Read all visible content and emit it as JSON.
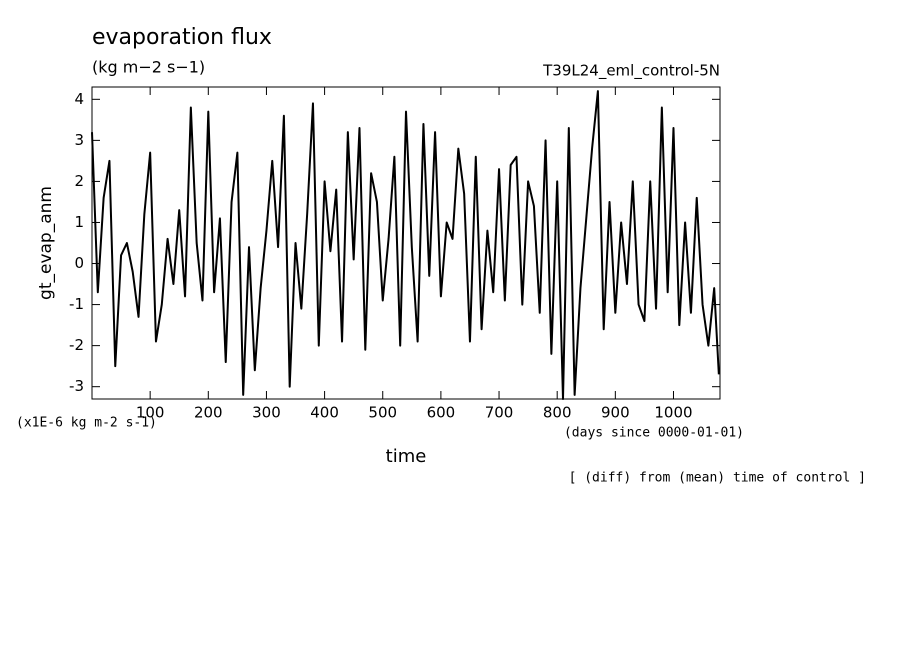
{
  "chart_data": {
    "type": "line",
    "title": "evaporation flux",
    "subtitle": "(kg m−2 s−1)",
    "run_label": "T39L24_eml_control-5N",
    "y_label": "gt_evap_anm",
    "y_unit_label": "(x1E-6 kg m-2 s-1)",
    "x_label": "time",
    "x_unit_label": "(days since 0000-01-01)",
    "note": "[ (diff) from (mean) time of control ]",
    "color": "#000000",
    "xlim": [
      0,
      1080
    ],
    "ylim": [
      -3.3,
      4.3
    ],
    "xticks": [
      100,
      200,
      300,
      400,
      500,
      600,
      700,
      800,
      900,
      1000
    ],
    "yticks": [
      -3,
      -2,
      -1,
      0,
      1,
      2,
      3,
      4
    ],
    "x": [
      0,
      10,
      20,
      30,
      40,
      50,
      60,
      70,
      80,
      90,
      100,
      110,
      120,
      130,
      140,
      150,
      160,
      170,
      180,
      190,
      200,
      210,
      220,
      230,
      240,
      250,
      260,
      270,
      280,
      290,
      300,
      310,
      320,
      330,
      340,
      350,
      360,
      370,
      380,
      390,
      400,
      410,
      420,
      430,
      440,
      450,
      460,
      470,
      480,
      490,
      500,
      510,
      520,
      530,
      540,
      550,
      560,
      570,
      580,
      590,
      600,
      610,
      620,
      630,
      640,
      650,
      660,
      670,
      680,
      690,
      700,
      710,
      720,
      730,
      740,
      750,
      760,
      770,
      780,
      790,
      800,
      810,
      820,
      830,
      840,
      850,
      860,
      870,
      880,
      890,
      900,
      910,
      920,
      930,
      940,
      950,
      960,
      970,
      980,
      990,
      1000,
      1010,
      1020,
      1030,
      1040,
      1050,
      1060,
      1070,
      1078
    ],
    "values": [
      3.2,
      -0.7,
      1.6,
      2.5,
      -2.5,
      0.2,
      0.5,
      -0.2,
      -1.3,
      1.2,
      2.7,
      -1.9,
      -1.0,
      0.6,
      -0.5,
      1.3,
      -0.8,
      3.8,
      0.5,
      -0.9,
      3.7,
      -0.7,
      1.1,
      -2.4,
      1.5,
      2.7,
      -3.2,
      0.4,
      -2.6,
      -0.6,
      0.8,
      2.5,
      0.4,
      3.6,
      -3.0,
      0.5,
      -1.1,
      1.2,
      3.9,
      -2.0,
      2.0,
      0.3,
      1.8,
      -1.9,
      3.2,
      0.1,
      3.3,
      -2.1,
      2.2,
      1.5,
      -0.9,
      0.6,
      2.6,
      -2.0,
      3.7,
      0.4,
      -1.9,
      3.4,
      -0.3,
      3.2,
      -0.8,
      1.0,
      0.6,
      2.8,
      1.7,
      -1.9,
      2.6,
      -1.6,
      0.8,
      -0.7,
      2.3,
      -0.9,
      2.4,
      2.6,
      -1.0,
      2.0,
      1.4,
      -1.2,
      3.0,
      -2.2,
      2.0,
      -3.3,
      3.3,
      -3.2,
      -0.6,
      1.1,
      2.8,
      4.2,
      -1.6,
      1.5,
      -1.2,
      1.0,
      -0.5,
      2.0,
      -1.0,
      -1.4,
      2.0,
      -1.1,
      3.8,
      -0.7,
      3.3,
      -1.5,
      1.0,
      -1.2,
      1.6,
      -1.0,
      -2.0,
      -0.6,
      -2.7
    ]
  }
}
